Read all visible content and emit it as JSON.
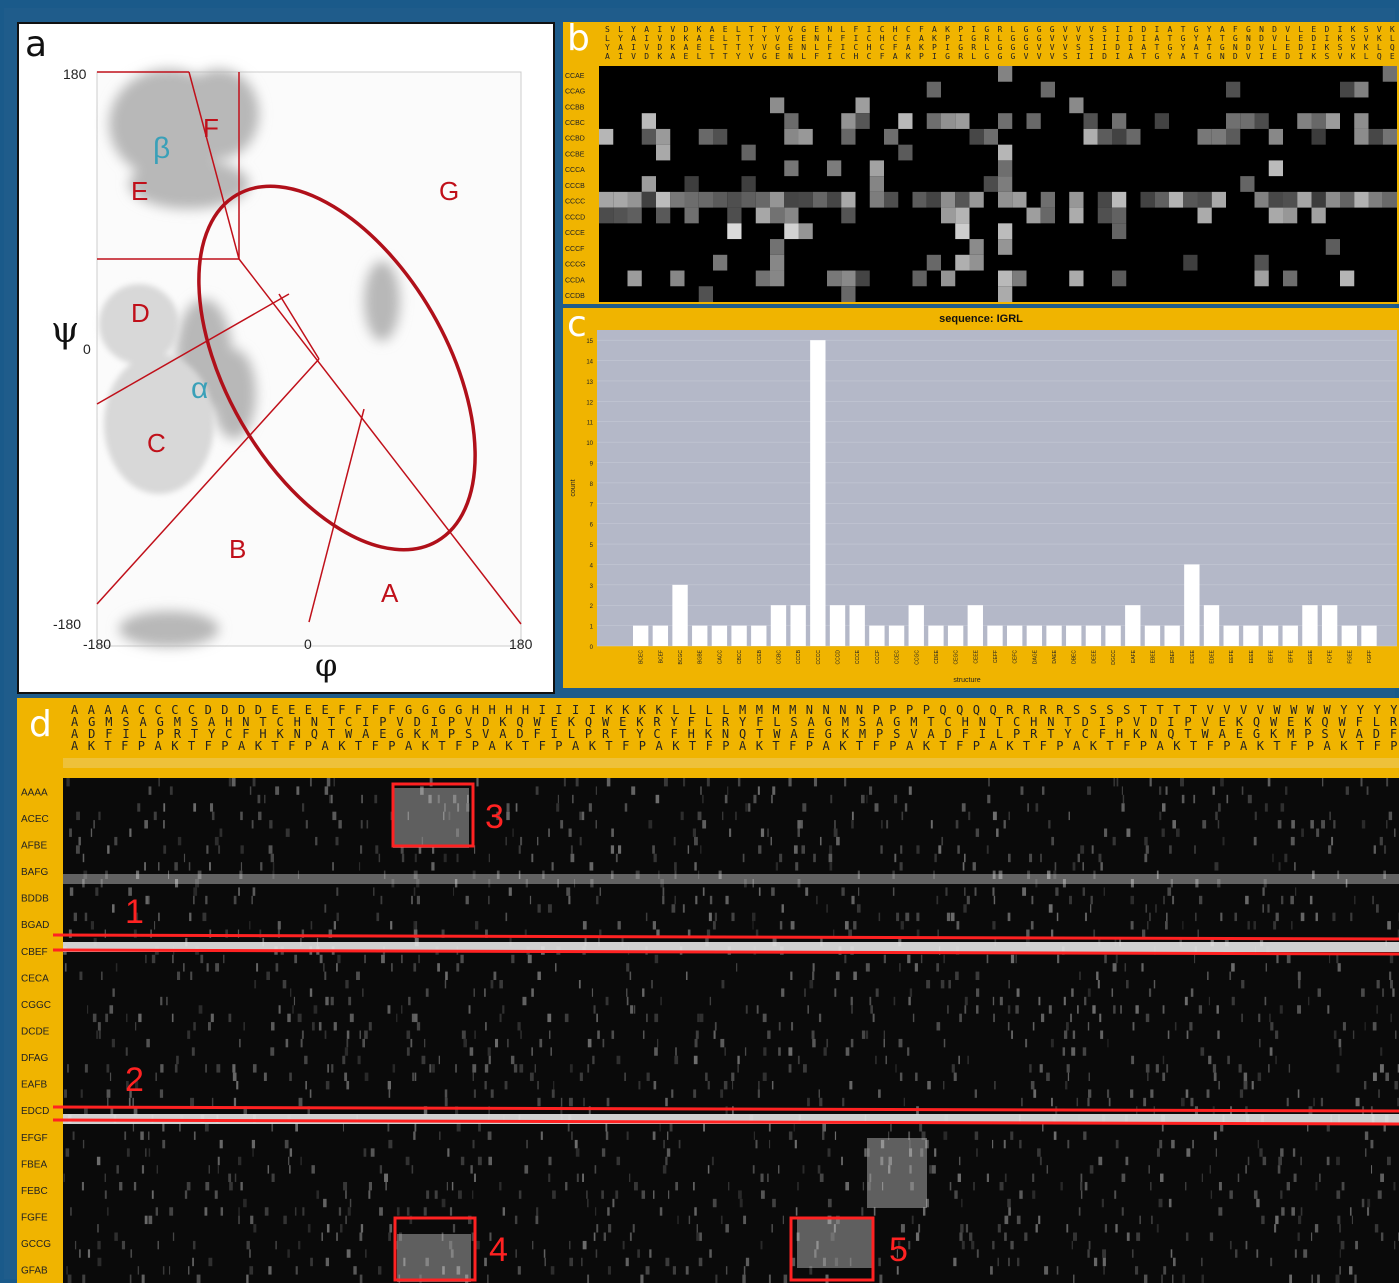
{
  "panel_a": {
    "letter": "a",
    "psi_symbol": "ψ",
    "phi_symbol": "φ",
    "y_ticks": [
      "180",
      "0",
      "-180"
    ],
    "x_ticks": [
      "-180",
      "0",
      "180"
    ],
    "regions": [
      {
        "label": "A",
        "color": "#c0101a"
      },
      {
        "label": "B",
        "color": "#c0101a"
      },
      {
        "label": "C",
        "color": "#c0101a"
      },
      {
        "label": "D",
        "color": "#c0101a"
      },
      {
        "label": "E",
        "color": "#c0101a"
      },
      {
        "label": "F",
        "color": "#c0101a"
      },
      {
        "label": "G",
        "color": "#c0101a"
      }
    ],
    "beta_label": "β",
    "alpha_label": "α",
    "greek_color": "#3aa0b8"
  },
  "panel_b": {
    "letter": "b",
    "col_rows": [
      "SLYAIVDKAELTTYVGENLFICHCFAKPIGRLGGGVVVSIIDIATGYAFGNDVLEDIKSVK",
      "LYAIVDKAELTTYVGENLFICHCFAKPIGRLGGGVVVSIIDIATGYATGNDVLEDIKSVKL",
      "YAIVDKAELTTYVGENLFICHCFAKPIGRLGGGVVVSIIDIATGYATGNDVLEDIKSVKLQ",
      "AIVDKAELTTYVGENLFICHCFAKPIGRLGGGVVVSIIDIATGYATGNDVIEDIKSVKLQE"
    ],
    "row_labels": [
      "CCAE",
      "CCAG",
      "CCBB",
      "CCBC",
      "CCBD",
      "CCBE",
      "CCCA",
      "CCCB",
      "CCCC",
      "CCCD",
      "CCCE",
      "CCCF",
      "CCCG",
      "CCDA",
      "CCDB"
    ]
  },
  "panel_c": {
    "letter": "c",
    "chart_data": {
      "type": "bar",
      "title": "sequence: IGRL",
      "xlabel": "structure",
      "ylabel": "count",
      "ylim": [
        0,
        15.5
      ],
      "yticks": [
        0,
        1,
        2,
        3,
        4,
        5,
        6,
        7,
        8,
        9,
        10,
        11,
        12,
        13,
        14,
        15
      ],
      "categories": [
        "BCEC",
        "BCEF",
        "BCGC",
        "BGBE",
        "CACC",
        "CBCC",
        "CCEB",
        "CCBC",
        "CCCB",
        "CCCC",
        "CCCD",
        "CCCE",
        "CCCF",
        "CCEC",
        "CCGC",
        "CDEE",
        "CEGC",
        "CEEE",
        "CEFF",
        "CEFC",
        "DAGE",
        "DAEE",
        "DBEC",
        "DEEE",
        "DGCC",
        "EAFE",
        "EBEE",
        "EBEF",
        "ECEE",
        "EDEE",
        "EEFE",
        "EEEE",
        "EEFE",
        "EFFE",
        "EGEE",
        "FCFE",
        "FGEE",
        "FGFF"
      ],
      "values": [
        1,
        1,
        3,
        1,
        1,
        1,
        1,
        2,
        2,
        15,
        2,
        2,
        1,
        1,
        2,
        1,
        1,
        2,
        1,
        1,
        1,
        1,
        1,
        1,
        1,
        2,
        1,
        1,
        4,
        2,
        1,
        1,
        1,
        1,
        2,
        2,
        1,
        1
      ],
      "plot_bg": "#b4b8c8",
      "bar_color": "#ffffff"
    }
  },
  "panel_d": {
    "letter": "d",
    "col_rows": [
      "AAAACCCCDDDDEEEEFFFFGGGGHHHHIIIIKKKKLLLLMMMMNNNNPPPPQQQQRRRRSSSSTTTTVVVVWWWWYYYY",
      "AGMSAGMSAHNTCHNTCIPVDIPVDKQWEKQWEKRYFLRYFLSAGMSAGMTCHNTCHNTDIPVDIPVEKQWEKQWFLR",
      "ADFILPRTYCFHKNQTWAEGKMPSVADFILPRTYCFHKNQTWAEGKMPSVADFILPRTYCFHKNQTWAEGKMPSVADF",
      "AKTFPAKTFPAKTFPAKTFPAKTFPAKTFPAKTFPAKTFPAKTFPAKTFPAKTFPAKTFPAKTFPAKTFPAKTFPAKTFP"
    ],
    "row_labels": [
      "AAAA",
      "ACEC",
      "AFBE",
      "BAFG",
      "BDDB",
      "BGAD",
      "CBEF",
      "CECA",
      "CGGC",
      "DCDE",
      "DFAG",
      "EAFB",
      "EDCD",
      "EFGF",
      "FBEA",
      "FEBC",
      "FGFE",
      "GCCG",
      "GFAB"
    ],
    "markers": [
      "1",
      "2",
      "3",
      "4",
      "5"
    ],
    "marker_color": "#ff2222"
  }
}
